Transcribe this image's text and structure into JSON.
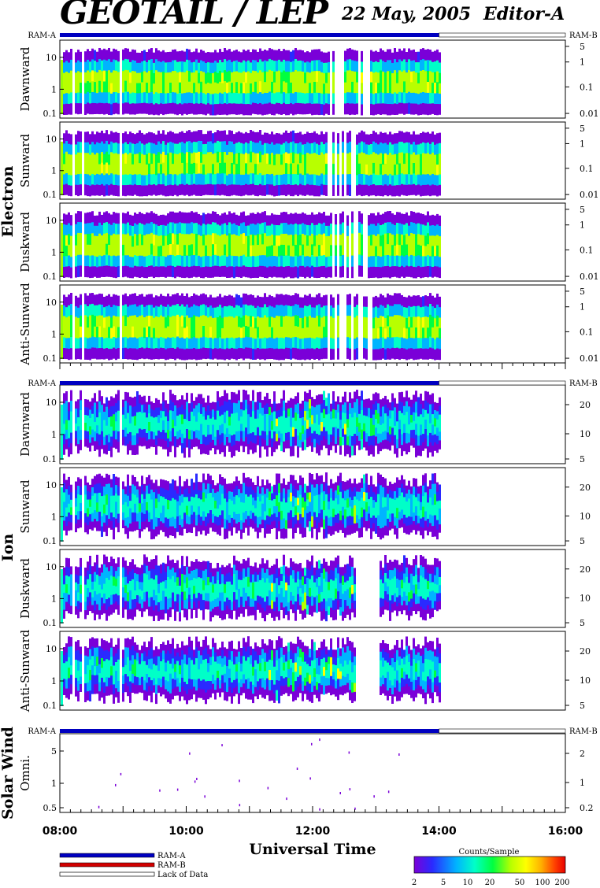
{
  "header": {
    "title": "GEOTAIL / LEP",
    "date": "22 May, 2005",
    "editor": "Editor-A"
  },
  "status_bar_labels": {
    "left": "RAM-A",
    "right": "RAM-B"
  },
  "groups": [
    {
      "name": "Electron",
      "panels": [
        "Dawnward",
        "Sunward",
        "Duskward",
        "Anti-Sunward"
      ]
    },
    {
      "name": "Ion",
      "panels": [
        "Dawnward",
        "Sunward",
        "Duskward",
        "Anti-Sunward"
      ]
    },
    {
      "name": "Solar Wind",
      "panels": [
        "Omni."
      ]
    }
  ],
  "chart_data": {
    "type": "heatmap",
    "title": "GEOTAIL / LEP",
    "xlabel": "Universal Time",
    "x_ticks": [
      "08:00",
      "10:00",
      "12:00",
      "14:00",
      "16:00"
    ],
    "x_range_hours": [
      8,
      16
    ],
    "data_coverage_hours": [
      8,
      14
    ],
    "data_gaps_hours": [
      8.2,
      8.35,
      8.95
    ],
    "status": {
      "RAM-A": [
        8,
        14
      ],
      "Lack of Data": [
        14,
        16
      ]
    },
    "electron": {
      "left_ticks": [
        "10",
        "1",
        "0.1"
      ],
      "right_ticks": [
        "5",
        "1",
        "0.1",
        "0.01"
      ],
      "right_ticks_ion_style": false,
      "panels": [
        "Dawnward",
        "Sunward",
        "Duskward",
        "Anti-Sunward"
      ]
    },
    "ion": {
      "left_ticks": [
        "10",
        "1",
        "0.1"
      ],
      "right_ticks": [
        "20",
        "10",
        "5"
      ],
      "panels": [
        "Dawnward",
        "Sunward",
        "Duskward",
        "Anti-Sunward"
      ]
    },
    "solar_wind": {
      "panel": "Omni.",
      "left_ticks": [
        "5",
        "1",
        "0.5"
      ],
      "right_ticks": [
        "2",
        "1",
        "0.2"
      ]
    },
    "colorbar": {
      "title": "Counts/Sample",
      "ticks": [
        "2",
        "5",
        "10",
        "20",
        "50",
        "100",
        "200"
      ],
      "colors": [
        "#7a00d8",
        "#2a2aff",
        "#00b4ff",
        "#00ffc8",
        "#00ff40",
        "#b8ff00",
        "#ffff00",
        "#ffb000",
        "#ff4000",
        "#e80000"
      ]
    },
    "legend": [
      "RAM-A",
      "RAM-B",
      "Lack of Data"
    ],
    "legend_colors": {
      "RAM-A": "#0000c0",
      "RAM-B": "#d00000",
      "Lack of Data": "#ffffff"
    }
  }
}
